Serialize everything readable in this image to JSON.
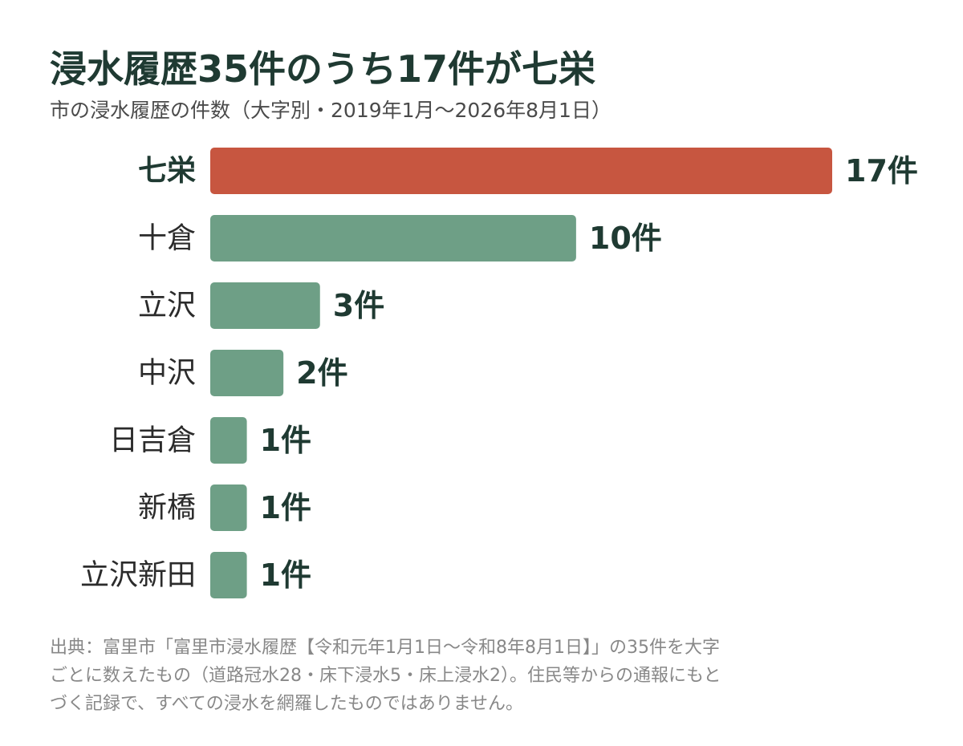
{
  "title": "浸水履歴35件のうち17件が七栄",
  "subtitle": "市の浸水履歴の件数（大字別・2019年1月～2026年8月1日）",
  "colors": {
    "highlight": "#c75640",
    "default": "#6e9f86",
    "text": "#1f3a32"
  },
  "chart_data": {
    "type": "bar",
    "orientation": "horizontal",
    "categories": [
      "七栄",
      "十倉",
      "立沢",
      "中沢",
      "日吉倉",
      "新橋",
      "立沢新田"
    ],
    "values": [
      17,
      10,
      3,
      2,
      1,
      1,
      1
    ],
    "value_labels": [
      "17件",
      "10件",
      "3件",
      "2件",
      "1件",
      "1件",
      "1件"
    ],
    "highlight_index": 0,
    "xlim": [
      0,
      17
    ],
    "grid": false,
    "legend": "none"
  },
  "footnote": {
    "lines": [
      "出典：富里市「富里市浸水履歴【令和元年1月1日～令和8年8月1日】」の35件を大字",
      "ごとに数えたもの（道路冠水28・床下浸水5・床上浸水2）。住民等からの通報にもと",
      "づく記録で、すべての浸水を網羅したものではありません。"
    ]
  }
}
